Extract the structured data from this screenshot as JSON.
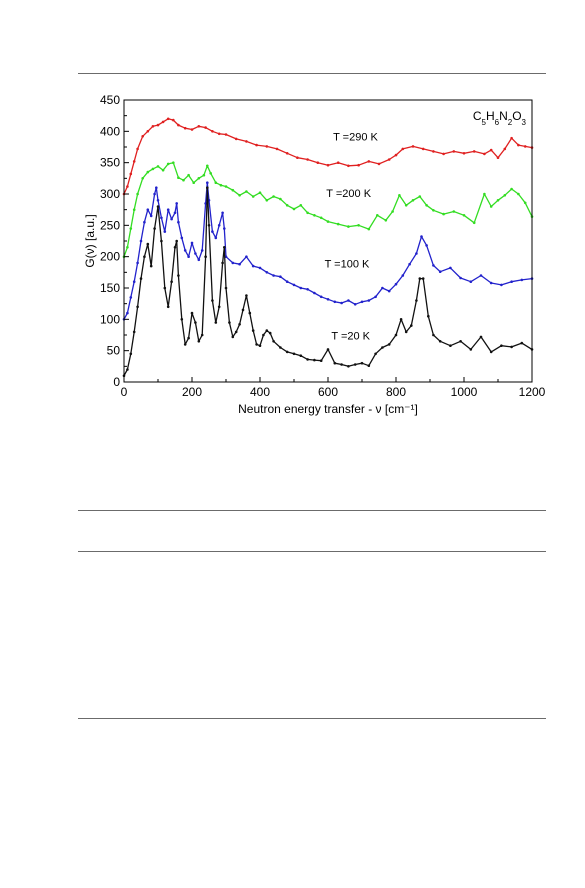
{
  "chart_data": {
    "type": "line",
    "title": "",
    "xlabel": "Neutron energy transfer - ν [cm⁻¹]",
    "ylabel": "G(ν) [a.u.]",
    "xlim": [
      0,
      1200
    ],
    "ylim": [
      0,
      450
    ],
    "xticks": [
      0,
      200,
      400,
      600,
      800,
      1000,
      1200
    ],
    "yticks": [
      0,
      50,
      100,
      150,
      200,
      250,
      300,
      350,
      400,
      450
    ],
    "grid": false,
    "legend": "none",
    "formula_label": "C5H6N2O3",
    "series": [
      {
        "name": "T =290 K",
        "color": "#e02020",
        "x": [
          0,
          10,
          20,
          30,
          40,
          55,
          70,
          85,
          100,
          115,
          130,
          145,
          160,
          180,
          200,
          220,
          240,
          260,
          280,
          300,
          330,
          360,
          390,
          420,
          450,
          480,
          510,
          540,
          570,
          600,
          630,
          660,
          690,
          720,
          750,
          780,
          800,
          820,
          850,
          880,
          910,
          940,
          970,
          1000,
          1030,
          1060,
          1080,
          1100,
          1120,
          1140,
          1160,
          1180,
          1200
        ],
        "values": [
          300,
          312,
          332,
          352,
          372,
          392,
          400,
          408,
          410,
          415,
          420,
          418,
          410,
          405,
          403,
          408,
          406,
          400,
          396,
          395,
          388,
          384,
          378,
          376,
          372,
          365,
          358,
          355,
          350,
          346,
          350,
          345,
          346,
          352,
          348,
          355,
          362,
          372,
          376,
          372,
          368,
          364,
          368,
          365,
          368,
          364,
          370,
          358,
          372,
          389,
          378,
          376,
          374
        ]
      },
      {
        "name": "T =200 K",
        "color": "#33dd22",
        "x": [
          0,
          10,
          20,
          30,
          40,
          55,
          70,
          85,
          100,
          115,
          130,
          145,
          160,
          175,
          190,
          205,
          220,
          235,
          245,
          255,
          270,
          285,
          300,
          320,
          340,
          360,
          380,
          400,
          420,
          440,
          460,
          480,
          500,
          520,
          540,
          560,
          580,
          600,
          630,
          660,
          690,
          720,
          745,
          770,
          790,
          810,
          830,
          850,
          870,
          890,
          910,
          940,
          970,
          1000,
          1030,
          1060,
          1080,
          1100,
          1120,
          1140,
          1160,
          1180,
          1200
        ],
        "values": [
          200,
          215,
          245,
          275,
          300,
          325,
          335,
          340,
          344,
          338,
          348,
          350,
          326,
          322,
          330,
          318,
          325,
          330,
          345,
          333,
          318,
          314,
          312,
          306,
          298,
          304,
          296,
          302,
          290,
          296,
          292,
          282,
          276,
          282,
          270,
          266,
          262,
          256,
          252,
          248,
          250,
          244,
          266,
          258,
          272,
          298,
          282,
          290,
          296,
          282,
          274,
          268,
          272,
          266,
          254,
          300,
          280,
          290,
          298,
          308,
          300,
          286,
          264
        ]
      },
      {
        "name": "T =100 K",
        "color": "#2222cc",
        "x": [
          0,
          10,
          20,
          30,
          40,
          50,
          60,
          70,
          80,
          90,
          95,
          100,
          110,
          120,
          130,
          140,
          150,
          155,
          160,
          170,
          180,
          190,
          200,
          210,
          220,
          230,
          240,
          245,
          250,
          260,
          270,
          280,
          290,
          295,
          300,
          320,
          340,
          360,
          380,
          400,
          420,
          440,
          460,
          480,
          500,
          520,
          540,
          560,
          580,
          600,
          620,
          640,
          660,
          680,
          700,
          720,
          740,
          760,
          780,
          800,
          820,
          840,
          860,
          875,
          890,
          910,
          930,
          960,
          990,
          1020,
          1050,
          1080,
          1110,
          1140,
          1170,
          1200
        ],
        "values": [
          100,
          110,
          135,
          160,
          190,
          225,
          255,
          275,
          265,
          300,
          310,
          290,
          262,
          240,
          275,
          260,
          270,
          285,
          255,
          230,
          210,
          200,
          222,
          205,
          195,
          210,
          285,
          318,
          290,
          240,
          230,
          250,
          270,
          245,
          200,
          190,
          188,
          200,
          185,
          182,
          175,
          170,
          168,
          160,
          155,
          150,
          148,
          142,
          136,
          132,
          128,
          126,
          130,
          124,
          128,
          130,
          136,
          150,
          145,
          156,
          170,
          188,
          205,
          232,
          218,
          186,
          176,
          182,
          166,
          160,
          170,
          158,
          155,
          160,
          163,
          165
        ]
      },
      {
        "name": "T =20 K",
        "color": "#111111",
        "x": [
          0,
          10,
          20,
          30,
          40,
          50,
          60,
          70,
          80,
          90,
          100,
          110,
          120,
          130,
          140,
          150,
          155,
          160,
          170,
          180,
          190,
          200,
          210,
          220,
          230,
          240,
          245,
          250,
          260,
          270,
          280,
          290,
          295,
          300,
          310,
          320,
          330,
          340,
          350,
          360,
          370,
          380,
          390,
          400,
          410,
          420,
          430,
          440,
          460,
          480,
          500,
          520,
          540,
          560,
          580,
          600,
          620,
          640,
          660,
          680,
          700,
          720,
          740,
          760,
          780,
          800,
          815,
          830,
          845,
          860,
          870,
          880,
          895,
          910,
          930,
          960,
          990,
          1020,
          1050,
          1080,
          1110,
          1140,
          1170,
          1200
        ],
        "values": [
          10,
          20,
          45,
          80,
          120,
          165,
          200,
          220,
          185,
          245,
          280,
          225,
          150,
          120,
          160,
          215,
          225,
          170,
          100,
          60,
          70,
          110,
          95,
          65,
          75,
          200,
          310,
          250,
          130,
          95,
          120,
          190,
          215,
          150,
          95,
          72,
          80,
          92,
          115,
          138,
          110,
          82,
          60,
          58,
          75,
          82,
          78,
          65,
          55,
          48,
          45,
          42,
          36,
          35,
          34,
          52,
          30,
          28,
          25,
          28,
          30,
          26,
          45,
          55,
          60,
          75,
          100,
          80,
          90,
          130,
          165,
          165,
          105,
          75,
          65,
          58,
          65,
          52,
          72,
          48,
          58,
          56,
          62,
          52
        ]
      }
    ]
  }
}
